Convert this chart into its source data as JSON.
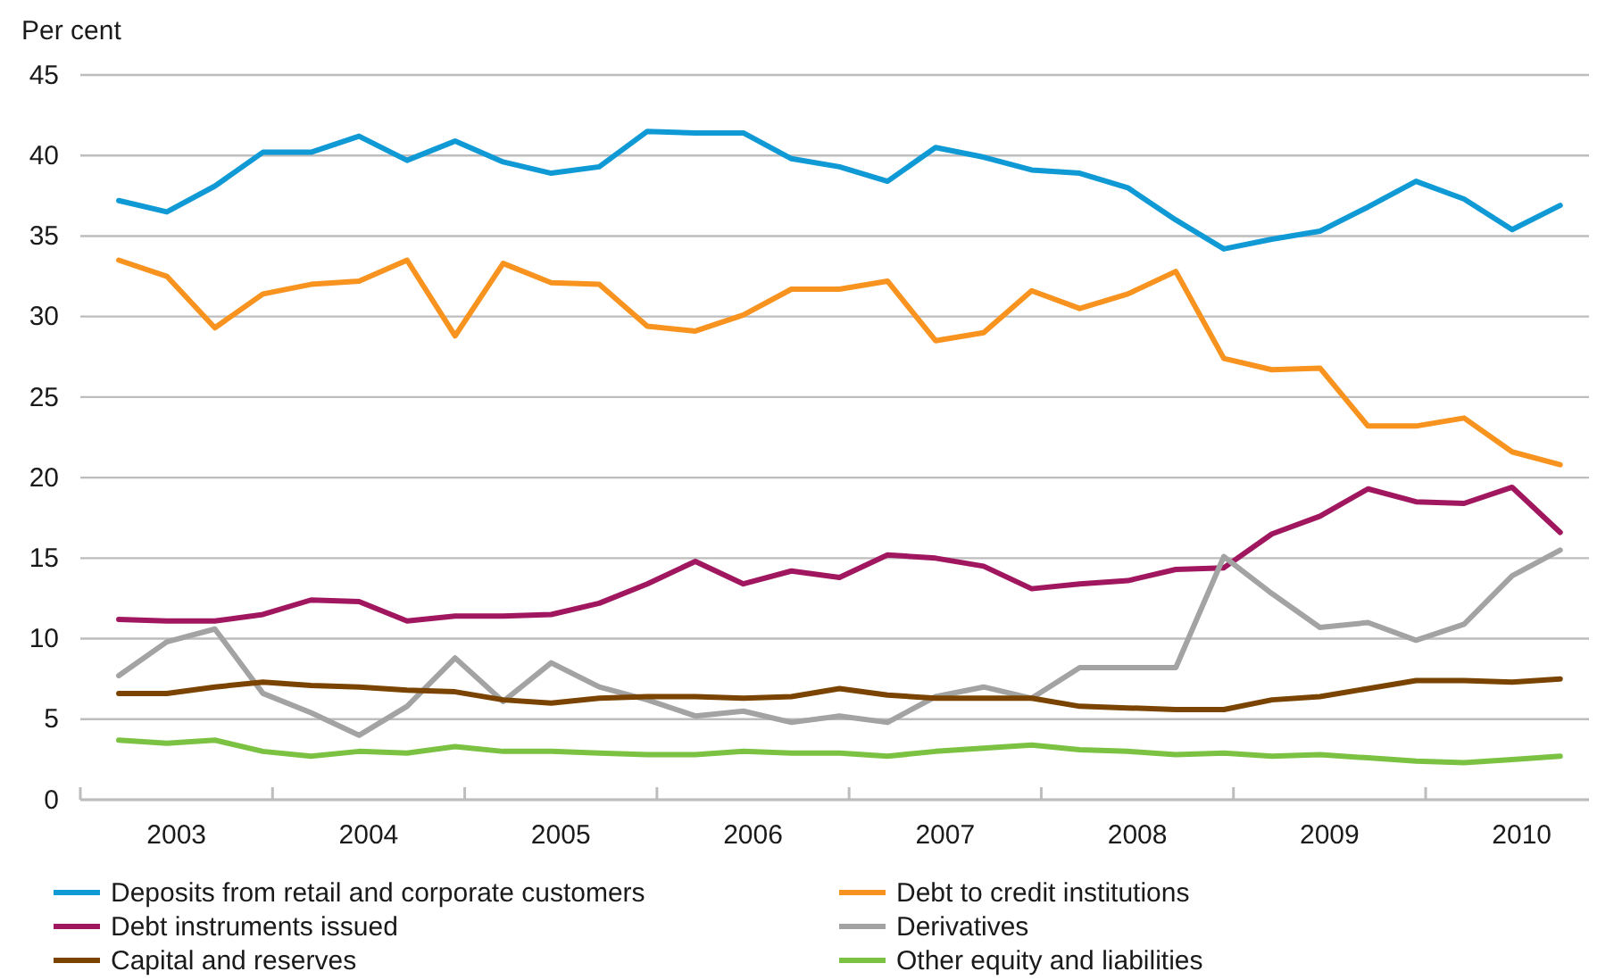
{
  "chart_data": {
    "type": "line",
    "ylabel": "Per cent",
    "x": [
      2003.2,
      2003.45,
      2003.7,
      2003.95,
      2004.2,
      2004.45,
      2004.7,
      2004.95,
      2005.2,
      2005.45,
      2005.7,
      2005.95,
      2006.2,
      2006.45,
      2006.7,
      2006.95,
      2007.2,
      2007.45,
      2007.7,
      2007.95,
      2008.2,
      2008.45,
      2008.7,
      2008.95,
      2009.2,
      2009.45,
      2009.7,
      2009.95,
      2010.2,
      2010.45,
      2010.7
    ],
    "xlim": [
      2003,
      2010.85
    ],
    "xticks": [
      {
        "value": 2003,
        "label": null
      },
      {
        "value": 2004,
        "label": null
      },
      {
        "value": 2005,
        "label": null
      },
      {
        "value": 2006,
        "label": null
      },
      {
        "value": 2007,
        "label": null
      },
      {
        "value": 2008,
        "label": null
      },
      {
        "value": 2009,
        "label": null
      },
      {
        "value": 2010,
        "label": null
      },
      {
        "value": 2003.5,
        "label": "2003"
      },
      {
        "value": 2004.5,
        "label": "2004"
      },
      {
        "value": 2005.5,
        "label": "2005"
      },
      {
        "value": 2006.5,
        "label": "2006"
      },
      {
        "value": 2007.5,
        "label": "2007"
      },
      {
        "value": 2008.5,
        "label": "2008"
      },
      {
        "value": 2009.5,
        "label": "2009"
      },
      {
        "value": 2010.5,
        "label": "2010"
      }
    ],
    "ylim": [
      0,
      45
    ],
    "yticks": [
      0,
      5,
      10,
      15,
      20,
      25,
      30,
      35,
      40,
      45
    ],
    "grid": "y",
    "legend": "bottom",
    "marker": "none",
    "line_style": "solid",
    "series": [
      {
        "name": "Deposits from retail and corporate customers",
        "color": "#0f9ad6",
        "values": [
          37.2,
          36.5,
          38.1,
          40.2,
          40.2,
          41.2,
          39.7,
          40.9,
          39.6,
          38.9,
          39.3,
          41.5,
          41.4,
          41.4,
          39.8,
          39.3,
          38.4,
          40.5,
          39.9,
          39.1,
          38.9,
          38.0,
          36.0,
          34.2,
          34.8,
          35.3,
          36.8,
          38.4,
          37.3,
          35.4,
          36.9
        ]
      },
      {
        "name": "Debt to credit institutions",
        "color": "#f7931e",
        "values": [
          33.5,
          32.5,
          29.3,
          31.4,
          32.0,
          32.2,
          33.5,
          28.8,
          33.3,
          32.1,
          32.0,
          29.4,
          29.1,
          30.1,
          31.7,
          31.7,
          32.2,
          28.5,
          29.0,
          31.6,
          30.5,
          31.4,
          32.8,
          27.4,
          26.7,
          26.8,
          23.2,
          23.2,
          23.7,
          21.6,
          20.8
        ]
      },
      {
        "name": "Debt instruments issued",
        "color": "#a0175f",
        "values": [
          11.2,
          11.1,
          11.1,
          11.5,
          12.4,
          12.3,
          11.1,
          11.4,
          11.4,
          11.5,
          12.2,
          13.4,
          14.8,
          13.4,
          14.2,
          13.8,
          15.2,
          15.0,
          14.5,
          13.1,
          13.4,
          13.6,
          14.3,
          14.4,
          16.5,
          17.6,
          19.3,
          18.5,
          18.4,
          19.4,
          16.6
        ]
      },
      {
        "name": "Derivatives",
        "color": "#a3a3a3",
        "values": [
          7.7,
          9.8,
          10.6,
          6.6,
          5.4,
          4.0,
          5.8,
          8.8,
          6.1,
          8.5,
          7.0,
          6.2,
          5.2,
          5.5,
          4.8,
          5.2,
          4.8,
          6.4,
          7.0,
          6.3,
          8.2,
          8.2,
          8.2,
          15.1,
          12.8,
          10.7,
          11.0,
          9.9,
          10.9,
          13.9,
          15.5
        ]
      },
      {
        "name": "Capital and reserves",
        "color": "#7a4400",
        "values": [
          6.6,
          6.6,
          7.0,
          7.3,
          7.1,
          7.0,
          6.8,
          6.7,
          6.2,
          6.0,
          6.3,
          6.4,
          6.4,
          6.3,
          6.4,
          6.9,
          6.5,
          6.3,
          6.3,
          6.3,
          5.8,
          5.7,
          5.6,
          5.6,
          6.2,
          6.4,
          6.9,
          7.4,
          7.4,
          7.3,
          7.5
        ]
      },
      {
        "name": "Other equity and liabilities",
        "color": "#7cc242",
        "values": [
          3.7,
          3.5,
          3.7,
          3.0,
          2.7,
          3.0,
          2.9,
          3.3,
          3.0,
          3.0,
          2.9,
          2.8,
          2.8,
          3.0,
          2.9,
          2.9,
          2.7,
          3.0,
          3.2,
          3.4,
          3.1,
          3.0,
          2.8,
          2.9,
          2.7,
          2.8,
          2.6,
          2.4,
          2.3,
          2.5,
          2.7
        ]
      }
    ]
  }
}
